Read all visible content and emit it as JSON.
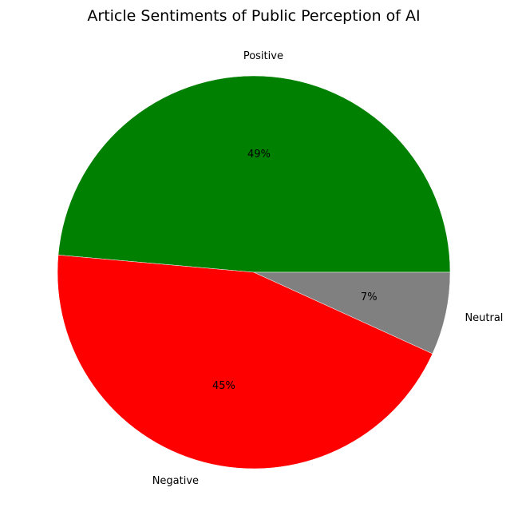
{
  "chart_data": {
    "type": "pie",
    "title": "Article Sentiments of Public Perception of AI",
    "start_angle_deg": 0,
    "direction": "counterclockwise",
    "slices": [
      {
        "label": "Positive",
        "value": 48.6,
        "pct_label": "49%",
        "color": "#008000"
      },
      {
        "label": "Negative",
        "value": 44.6,
        "pct_label": "45%",
        "color": "#ff0000"
      },
      {
        "label": "Neutral",
        "value": 6.8,
        "pct_label": "7%",
        "color": "#808080"
      }
    ]
  }
}
